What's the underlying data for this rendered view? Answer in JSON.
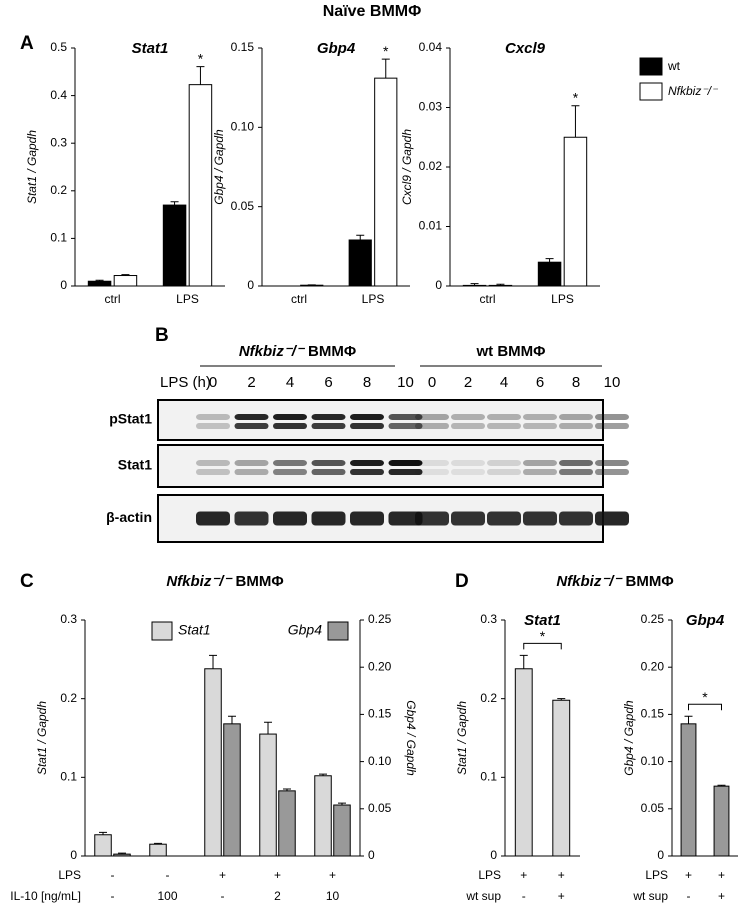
{
  "figure": {
    "title": "Naïve BMMΦ",
    "panels": [
      "A",
      "B",
      "C",
      "D"
    ],
    "panel_titles": [
      {
        "gene": "Nfkbiz⁻/⁻",
        "cells": "BMMΦ"
      },
      {
        "gene": "Nfkbiz⁻/⁻",
        "cells": "BMMΦ"
      }
    ]
  },
  "blot": {
    "groups": [
      {
        "gene": "Nfkbiz⁻/⁻",
        "cells": "BMMΦ"
      },
      {
        "label": "wt BMMΦ"
      }
    ],
    "time_label": "LPS (h)",
    "lanes": [
      0,
      2,
      4,
      6,
      8,
      10,
      0,
      2,
      4,
      6,
      8,
      10
    ],
    "rows": [
      "pStat1",
      "Stat1",
      "β-actin"
    ]
  },
  "chart_data": [
    {
      "type": "bar",
      "title": "Stat1",
      "ylabel": "Stat1 / Gapdh",
      "categories": [
        "ctrl",
        "LPS"
      ],
      "ylim": [
        0,
        0.5
      ],
      "yticks": [
        0,
        0.1,
        0.2,
        0.3,
        0.4,
        0.5
      ],
      "legend": "right",
      "series": [
        {
          "name": "wt",
          "color": "#000000",
          "values": [
            0.01,
            0.17
          ],
          "errors": [
            0.002,
            0.007
          ]
        },
        {
          "name": "Nfkbiz⁻/⁻",
          "color": "#ffffff",
          "values": [
            0.022,
            0.423
          ],
          "errors": [
            0.002,
            0.038
          ],
          "stars": [
            null,
            "*"
          ]
        }
      ]
    },
    {
      "type": "bar",
      "title": "Gbp4",
      "ylabel": "Gbp4 / Gapdh",
      "categories": [
        "ctrl",
        "LPS"
      ],
      "ylim": [
        0,
        0.15
      ],
      "yticks": [
        0,
        0.05,
        {
          "value": 0.1,
          "label": "0.10"
        },
        0.15
      ],
      "series": [
        {
          "color": "#000000",
          "values": [
            0,
            0.029
          ],
          "errors": [
            0,
            0.003
          ]
        },
        {
          "color": "#ffffff",
          "values": [
            0.0005,
            0.131
          ],
          "errors": [
            0.0002,
            0.012
          ],
          "stars": [
            null,
            "*"
          ]
        }
      ]
    },
    {
      "type": "bar",
      "title": "Cxcl9",
      "ylabel": "Cxcl9 / Gapdh",
      "categories": [
        "ctrl",
        "LPS"
      ],
      "ylim": [
        0,
        0.04
      ],
      "yticks": [
        0,
        0.01,
        0.02,
        0.03,
        0.04
      ],
      "series": [
        {
          "color": "#000000",
          "values": [
            0.0001,
            0.004
          ],
          "errors": [
            0.0003,
            0.0006
          ]
        },
        {
          "color": "#ffffff",
          "values": [
            0.0001,
            0.025
          ],
          "errors": [
            0.0002,
            0.0053
          ],
          "stars": [
            null,
            "*"
          ]
        }
      ]
    },
    {
      "type": "bar",
      "ylabel": "Stat1 / Gapdh",
      "y2label": "Gbp4 / Gapdh",
      "ylim": [
        0,
        0.3
      ],
      "yticks": [
        0,
        0.1,
        0.2,
        0.3
      ],
      "y2lim": [
        0,
        0.25
      ],
      "y2ticks": [
        0,
        0.05,
        {
          "value": 0.1,
          "label": "0.10"
        },
        0.15,
        {
          "value": 0.2,
          "label": "0.20"
        },
        0.25
      ],
      "legend": "top",
      "conditions": [
        {
          "label": "LPS",
          "values": [
            "-",
            "-",
            "+",
            "+",
            "+"
          ]
        },
        {
          "label": "IL-10 [ng/mL]",
          "values": [
            "-",
            "100",
            "-",
            "2",
            "10"
          ]
        }
      ],
      "series": [
        {
          "name": "Stat1",
          "color": "#d9d9d9",
          "values": [
            0.027,
            0.015,
            0.238,
            0.155,
            0.102
          ],
          "errors": [
            0.003,
            0.001,
            0.017,
            0.015,
            0.002
          ]
        },
        {
          "name": "Gbp4",
          "color": "#999999",
          "axis": "y2",
          "values": [
            0.002,
            0,
            0.14,
            0.069,
            0.054
          ],
          "errors": [
            0.001,
            0,
            0.008,
            0.002,
            0.002
          ]
        }
      ]
    },
    {
      "type": "bar",
      "title": "Stat1",
      "ylabel": "Stat1 / Gapdh",
      "ylim": [
        0,
        0.3
      ],
      "yticks": [
        0,
        0.1,
        0.2,
        0.3
      ],
      "conditions": [
        {
          "label": "LPS",
          "values": [
            "+",
            "+"
          ]
        },
        {
          "label": "wt sup",
          "values": [
            "-",
            "+"
          ]
        }
      ],
      "bracket": "*",
      "series": [
        {
          "color": "#d9d9d9",
          "values": [
            0.238,
            0.198
          ],
          "errors": [
            0.017,
            0.002
          ]
        }
      ]
    },
    {
      "type": "bar",
      "title": "Gbp4",
      "ylabel": "Gbp4 / Gapdh",
      "ylim": [
        0,
        0.25
      ],
      "yticks": [
        0,
        0.05,
        {
          "value": 0.1,
          "label": "0.10"
        },
        0.15,
        {
          "value": 0.2,
          "label": "0.20"
        },
        0.25
      ],
      "conditions": [
        {
          "label": "LPS",
          "values": [
            "+",
            "+"
          ]
        },
        {
          "label": "wt sup",
          "values": [
            "-",
            "+"
          ]
        }
      ],
      "bracket": "*",
      "series": [
        {
          "color": "#999999",
          "values": [
            0.14,
            0.074
          ],
          "errors": [
            0.008,
            0.001
          ]
        }
      ]
    }
  ]
}
